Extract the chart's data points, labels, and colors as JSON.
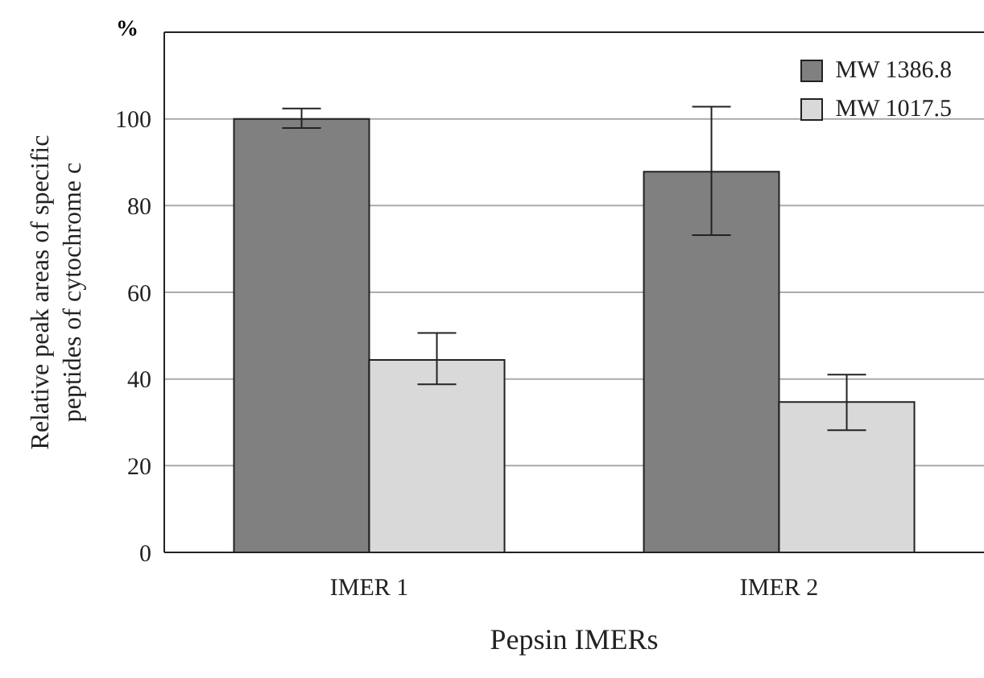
{
  "chart_data": {
    "type": "bar",
    "categories": [
      "IMER 1",
      "IMER 2"
    ],
    "series": [
      {
        "name": "MW 1386.8",
        "color": "#808080",
        "values": [
          100,
          87.8
        ],
        "errors": [
          [
            97.9,
            102.4
          ],
          [
            73.2,
            102.8
          ]
        ]
      },
      {
        "name": "MW 1017.5",
        "color": "#d9d9d9",
        "values": [
          44.4,
          34.7
        ],
        "errors": [
          [
            38.8,
            50.6
          ],
          [
            28.2,
            41
          ]
        ]
      }
    ],
    "xlabel": "Pepsin IMERs",
    "ylabel": "Relative peak areas of specific peptides of cytochrome c",
    "annotations": [
      "%"
    ],
    "ylim": [
      0,
      120
    ],
    "yticks": [
      0,
      20,
      40,
      60,
      80,
      100
    ],
    "grid": "y",
    "legend": "top right"
  }
}
